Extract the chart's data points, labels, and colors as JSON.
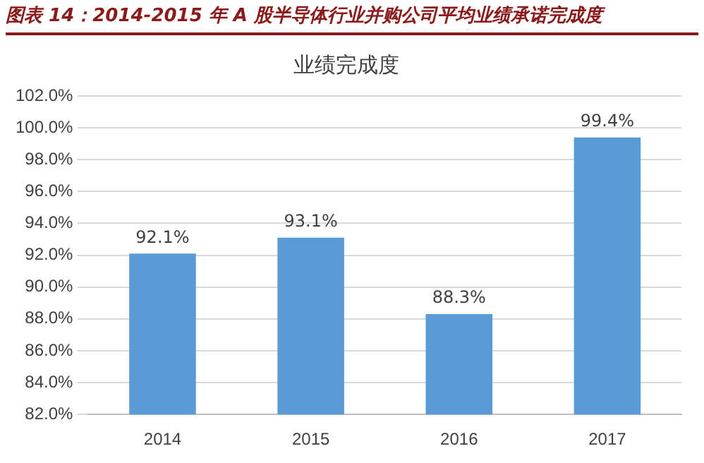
{
  "chart_data": {
    "type": "bar",
    "title": "图表 14：2014-2015 年 A 股半导体行业并购公司平均业绩承诺完成度",
    "subtitle": "业绩完成度",
    "categories": [
      "2014",
      "2015",
      "2016",
      "2017"
    ],
    "values": [
      92.1,
      93.1,
      88.3,
      99.4
    ],
    "value_labels": [
      "92.1%",
      "93.1%",
      "88.3%",
      "99.4%"
    ],
    "color": "#5b9bd5",
    "ylim": [
      82,
      102
    ],
    "yticks": [
      {
        "value": 82,
        "label": "82.0%"
      },
      {
        "value": 84,
        "label": "84.0%"
      },
      {
        "value": 86,
        "label": "86.0%"
      },
      {
        "value": 88,
        "label": "88.0%"
      },
      {
        "value": 90,
        "label": "90.0%"
      },
      {
        "value": 92,
        "label": "92.0%"
      },
      {
        "value": 94,
        "label": "94.0%"
      },
      {
        "value": 96,
        "label": "96.0%"
      },
      {
        "value": 98,
        "label": "98.0%"
      },
      {
        "value": 100,
        "label": "100.0%"
      },
      {
        "value": 102,
        "label": "102.0%"
      }
    ],
    "grid": "y"
  }
}
